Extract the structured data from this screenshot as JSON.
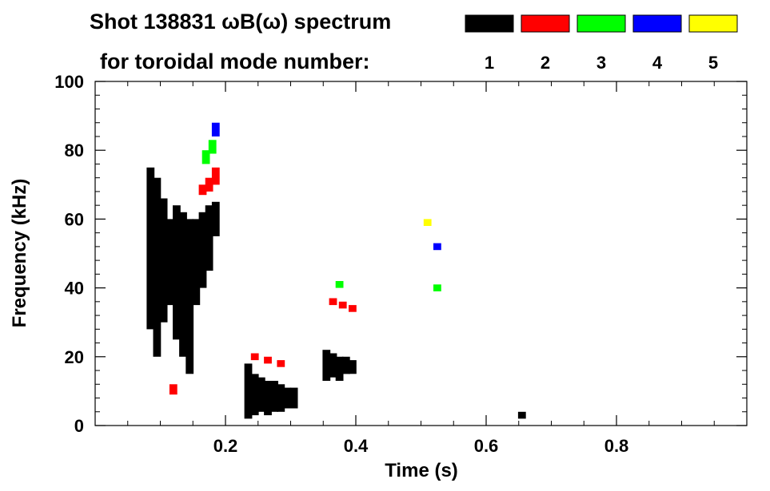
{
  "chart_data": {
    "type": "heatmap",
    "title_line1": "Shot 138831 ωB(ω) spectrum",
    "title_line2": "for toroidal mode number:",
    "xlabel": "Time (s)",
    "ylabel": "Frequency (kHz)",
    "xlim": [
      0.0,
      1.0
    ],
    "ylim": [
      0,
      100
    ],
    "xticks": [
      0.2,
      0.4,
      0.6,
      0.8
    ],
    "xtick_labels": [
      "0.2",
      "0.4",
      "0.6",
      "0.8"
    ],
    "yticks": [
      0,
      20,
      40,
      60,
      80,
      100
    ],
    "ytick_labels": [
      "0",
      "20",
      "40",
      "60",
      "80",
      "100"
    ],
    "legend": [
      {
        "label": "1",
        "color": "#000000"
      },
      {
        "label": "2",
        "color": "#ff0000"
      },
      {
        "label": "3",
        "color": "#00ff00"
      },
      {
        "label": "4",
        "color": "#0000ff"
      },
      {
        "label": "5",
        "color": "#ffff00"
      }
    ],
    "series": [
      {
        "name": "n=1",
        "color": "#000000",
        "blobs": [
          {
            "t": 0.085,
            "f0": 28,
            "f1": 75
          },
          {
            "t": 0.095,
            "f0": 20,
            "f1": 72
          },
          {
            "t": 0.105,
            "f0": 30,
            "f1": 66
          },
          {
            "t": 0.115,
            "f0": 35,
            "f1": 60
          },
          {
            "t": 0.125,
            "f0": 25,
            "f1": 64
          },
          {
            "t": 0.135,
            "f0": 20,
            "f1": 62
          },
          {
            "t": 0.145,
            "f0": 15,
            "f1": 60
          },
          {
            "t": 0.155,
            "f0": 35,
            "f1": 60
          },
          {
            "t": 0.165,
            "f0": 40,
            "f1": 62
          },
          {
            "t": 0.175,
            "f0": 45,
            "f1": 64
          },
          {
            "t": 0.185,
            "f0": 55,
            "f1": 65
          },
          {
            "t": 0.235,
            "f0": 2,
            "f1": 18
          },
          {
            "t": 0.245,
            "f0": 3,
            "f1": 15
          },
          {
            "t": 0.255,
            "f0": 4,
            "f1": 14
          },
          {
            "t": 0.265,
            "f0": 3,
            "f1": 13
          },
          {
            "t": 0.275,
            "f0": 4,
            "f1": 13
          },
          {
            "t": 0.285,
            "f0": 4,
            "f1": 12
          },
          {
            "t": 0.295,
            "f0": 5,
            "f1": 11
          },
          {
            "t": 0.305,
            "f0": 5,
            "f1": 11
          },
          {
            "t": 0.355,
            "f0": 13,
            "f1": 22
          },
          {
            "t": 0.365,
            "f0": 14,
            "f1": 21
          },
          {
            "t": 0.375,
            "f0": 13,
            "f1": 20
          },
          {
            "t": 0.385,
            "f0": 15,
            "f1": 20
          },
          {
            "t": 0.395,
            "f0": 15,
            "f1": 19
          },
          {
            "t": 0.655,
            "f0": 2,
            "f1": 4
          }
        ]
      },
      {
        "name": "n=2",
        "color": "#ff0000",
        "blobs": [
          {
            "t": 0.12,
            "f0": 9,
            "f1": 12
          },
          {
            "t": 0.165,
            "f0": 67,
            "f1": 70
          },
          {
            "t": 0.175,
            "f0": 68,
            "f1": 72
          },
          {
            "t": 0.185,
            "f0": 70,
            "f1": 75
          },
          {
            "t": 0.245,
            "f0": 19,
            "f1": 21
          },
          {
            "t": 0.265,
            "f0": 18,
            "f1": 20
          },
          {
            "t": 0.285,
            "f0": 17,
            "f1": 19
          },
          {
            "t": 0.365,
            "f0": 35,
            "f1": 37
          },
          {
            "t": 0.38,
            "f0": 34,
            "f1": 36
          },
          {
            "t": 0.395,
            "f0": 33,
            "f1": 35
          }
        ]
      },
      {
        "name": "n=3",
        "color": "#00ff00",
        "blobs": [
          {
            "t": 0.17,
            "f0": 76,
            "f1": 80
          },
          {
            "t": 0.18,
            "f0": 79,
            "f1": 83
          },
          {
            "t": 0.375,
            "f0": 40,
            "f1": 42
          },
          {
            "t": 0.525,
            "f0": 39,
            "f1": 41
          }
        ]
      },
      {
        "name": "n=4",
        "color": "#0000ff",
        "blobs": [
          {
            "t": 0.185,
            "f0": 84,
            "f1": 88
          },
          {
            "t": 0.525,
            "f0": 51,
            "f1": 53
          }
        ]
      },
      {
        "name": "n=5",
        "color": "#ffff00",
        "blobs": [
          {
            "t": 0.51,
            "f0": 58,
            "f1": 60
          }
        ]
      }
    ]
  }
}
